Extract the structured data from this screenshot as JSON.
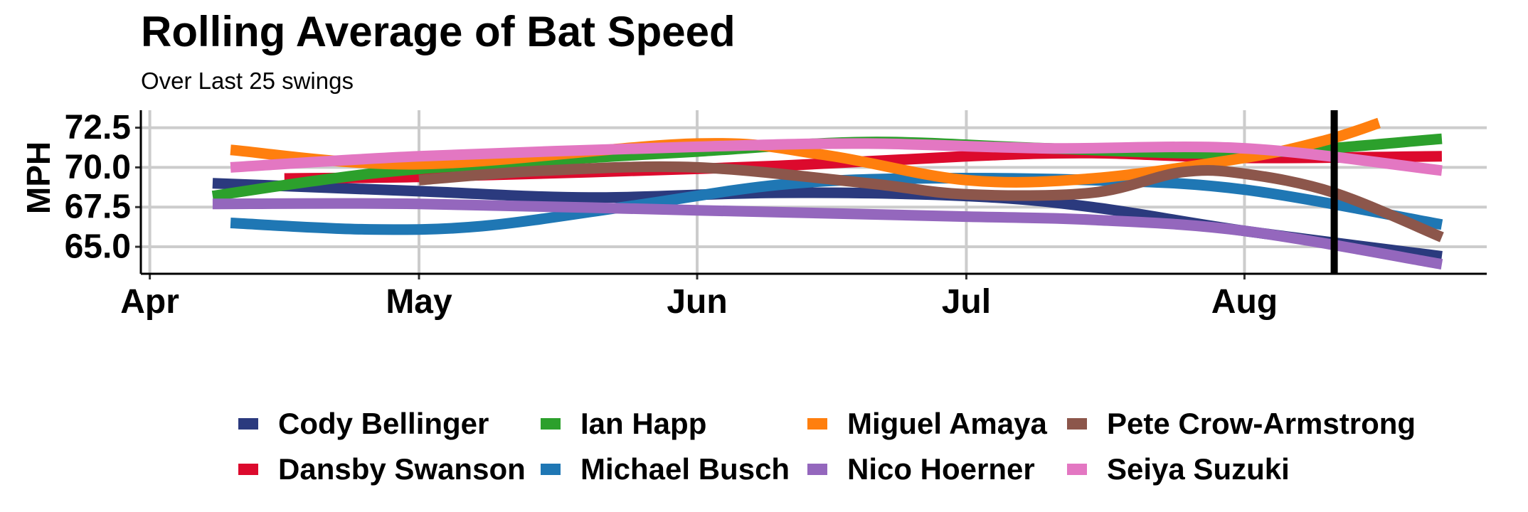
{
  "chart_data": {
    "type": "line",
    "title": "Rolling Average of Bat Speed",
    "subtitle": "Over Last 25 swings",
    "xlabel": "",
    "ylabel": "MPH",
    "x_ticks": [
      "Apr",
      "May",
      "Jun",
      "Jul",
      "Aug"
    ],
    "y_ticks": [
      "65.0",
      "67.5",
      "70.0",
      "72.5"
    ],
    "ylim": [
      63.3,
      73.6
    ],
    "xlim": [
      "2024-03-31",
      "2024-08-28"
    ],
    "grid": true,
    "legend_position": "bottom",
    "vertical_marker": "2024-08-11",
    "series": [
      {
        "name": "Cody Bellinger",
        "color": "#2b3a7e",
        "x": [
          "2024-04-08",
          "2024-05-01",
          "2024-05-20",
          "2024-06-10",
          "2024-07-01",
          "2024-07-15",
          "2024-08-01",
          "2024-08-23"
        ],
        "y": [
          69.0,
          68.5,
          68.1,
          68.4,
          68.2,
          67.5,
          66.0,
          64.4
        ]
      },
      {
        "name": "Dansby Swanson",
        "color": "#dc0a2d",
        "x": [
          "2024-04-16",
          "2024-05-01",
          "2024-05-20",
          "2024-06-10",
          "2024-07-01",
          "2024-07-15",
          "2024-08-01",
          "2024-08-23"
        ],
        "y": [
          69.3,
          69.4,
          69.7,
          70.1,
          70.7,
          70.9,
          70.6,
          70.7
        ]
      },
      {
        "name": "Ian Happ",
        "color": "#2ca02c",
        "x": [
          "2024-04-08",
          "2024-04-20",
          "2024-05-01",
          "2024-05-20",
          "2024-06-01",
          "2024-06-20",
          "2024-07-10",
          "2024-08-01",
          "2024-08-23"
        ],
        "y": [
          68.2,
          69.2,
          69.9,
          70.6,
          71.0,
          71.6,
          71.2,
          70.9,
          71.8
        ]
      },
      {
        "name": "Michael Busch",
        "color": "#1f77b4",
        "x": [
          "2024-04-10",
          "2024-04-25",
          "2024-05-08",
          "2024-05-25",
          "2024-06-10",
          "2024-06-25",
          "2024-07-15",
          "2024-08-01",
          "2024-08-23"
        ],
        "y": [
          66.5,
          66.1,
          66.3,
          67.6,
          68.9,
          69.3,
          69.2,
          68.6,
          66.4
        ]
      },
      {
        "name": "Miguel Amaya",
        "color": "#ff7f0e",
        "x": [
          "2024-04-10",
          "2024-05-01",
          "2024-06-01",
          "2024-06-15",
          "2024-07-01",
          "2024-07-15",
          "2024-08-01",
          "2024-08-10",
          "2024-08-16"
        ],
        "y": [
          71.1,
          70.2,
          71.5,
          70.8,
          69.2,
          69.3,
          70.6,
          71.7,
          72.8
        ]
      },
      {
        "name": "Nico Hoerner",
        "color": "#9467bd",
        "x": [
          "2024-04-08",
          "2024-05-01",
          "2024-06-01",
          "2024-07-01",
          "2024-07-15",
          "2024-08-01",
          "2024-08-23"
        ],
        "y": [
          67.7,
          67.7,
          67.3,
          66.9,
          66.7,
          66.0,
          63.9
        ]
      },
      {
        "name": "Pete Crow-Armstrong",
        "color": "#8c564b",
        "x": [
          "2024-05-01",
          "2024-05-15",
          "2024-06-01",
          "2024-06-20",
          "2024-07-01",
          "2024-07-15",
          "2024-07-25",
          "2024-08-01",
          "2024-08-11",
          "2024-08-23"
        ],
        "y": [
          69.2,
          69.8,
          70.0,
          69.0,
          68.3,
          68.4,
          69.7,
          69.6,
          68.4,
          65.6
        ]
      },
      {
        "name": "Seiya Suzuki",
        "color": "#e377c2",
        "x": [
          "2024-04-10",
          "2024-05-01",
          "2024-06-01",
          "2024-06-20",
          "2024-07-10",
          "2024-08-01",
          "2024-08-23"
        ],
        "y": [
          70.0,
          70.7,
          71.3,
          71.5,
          71.2,
          71.2,
          69.8
        ]
      }
    ]
  }
}
